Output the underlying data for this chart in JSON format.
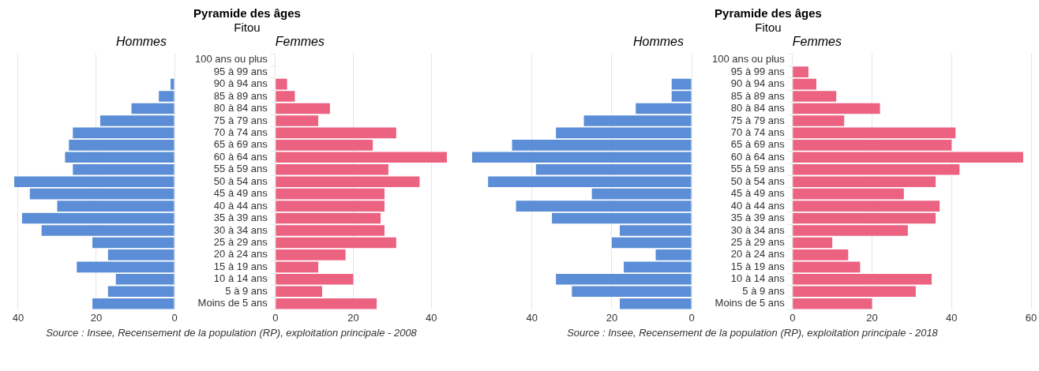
{
  "chart_data": [
    {
      "type": "bar",
      "orientation": "horizontal",
      "series": [
        {
          "name": "Hommes",
          "color": "#5b8ed6",
          "values": [
            0,
            0,
            1,
            4,
            11,
            19,
            26,
            27,
            28,
            26,
            41,
            37,
            30,
            39,
            34,
            21,
            17,
            25,
            15,
            17,
            21
          ]
        }
      ],
      "xlim": [
        41,
        0
      ],
      "xticks": [
        40,
        20,
        0
      ],
      "grid": "x",
      "tick_labels": "x"
    },
    {
      "type": "bar",
      "orientation": "horizontal",
      "categories": [
        "100 ans ou plus",
        "95 à 99 ans",
        "90 à 94 ans",
        "85 à 89 ans",
        "80 à 84 ans",
        "75 à 79 ans",
        "70 à 74 ans",
        "65 à 69 ans",
        "60 à 64 ans",
        "55 à 59 ans",
        "50 à 54 ans",
        "45 à 49 ans",
        "40 à 44 ans",
        "35 à 39 ans",
        "30 à 34 ans",
        "25 à 29 ans",
        "20 à 24 ans",
        "15 à 19 ans",
        "10 à 14 ans",
        "5 à 9 ans",
        "Moins de 5 ans"
      ],
      "title": "Pyramide des âges",
      "subtitle": "Fitou",
      "annotations": [
        "Source : Insee, Recensement de la population (RP), exploitation principale - 2008"
      ],
      "series": [
        {
          "name": "Femmes",
          "color": "#ec6281",
          "values": [
            0,
            0,
            3,
            5,
            14,
            11,
            31,
            25,
            44,
            29,
            37,
            28,
            28,
            27,
            28,
            31,
            18,
            11,
            20,
            12,
            26
          ]
        }
      ],
      "xlim": [
        0,
        44
      ],
      "xticks": [
        0,
        20,
        40
      ],
      "grid": "x"
    },
    {
      "type": "bar",
      "orientation": "horizontal",
      "series": [
        {
          "name": "Hommes",
          "color": "#5b8ed6",
          "values": [
            0,
            0,
            5,
            5,
            14,
            27,
            34,
            45,
            55,
            39,
            51,
            25,
            44,
            35,
            18,
            20,
            9,
            17,
            34,
            30,
            18
          ]
        }
      ],
      "xlim": [
        55,
        0
      ],
      "xticks": [
        40,
        20,
        0
      ],
      "grid": "x",
      "tick_labels": "x"
    },
    {
      "type": "bar",
      "orientation": "horizontal",
      "categories": [
        "100 ans ou plus",
        "95 à 99 ans",
        "90 à 94 ans",
        "85 à 89 ans",
        "80 à 84 ans",
        "75 à 79 ans",
        "70 à 74 ans",
        "65 à 69 ans",
        "60 à 64 ans",
        "55 à 59 ans",
        "50 à 54 ans",
        "45 à 49 ans",
        "40 à 44 ans",
        "35 à 39 ans",
        "30 à 34 ans",
        "25 à 29 ans",
        "20 à 24 ans",
        "15 à 19 ans",
        "10 à 14 ans",
        "5 à 9 ans",
        "Moins de 5 ans"
      ],
      "title": "Pyramide des âges",
      "subtitle": "Fitou",
      "annotations": [
        "Source : Insee, Recensement de la population (RP), exploitation principale - 2018"
      ],
      "series": [
        {
          "name": "Femmes",
          "color": "#ec6281",
          "values": [
            0,
            4,
            6,
            11,
            22,
            13,
            41,
            40,
            58,
            42,
            36,
            28,
            37,
            36,
            29,
            10,
            14,
            17,
            35,
            31,
            20
          ]
        }
      ],
      "xlim": [
        0,
        60
      ],
      "xticks": [
        0,
        20,
        40,
        60
      ],
      "grid": "x"
    }
  ]
}
